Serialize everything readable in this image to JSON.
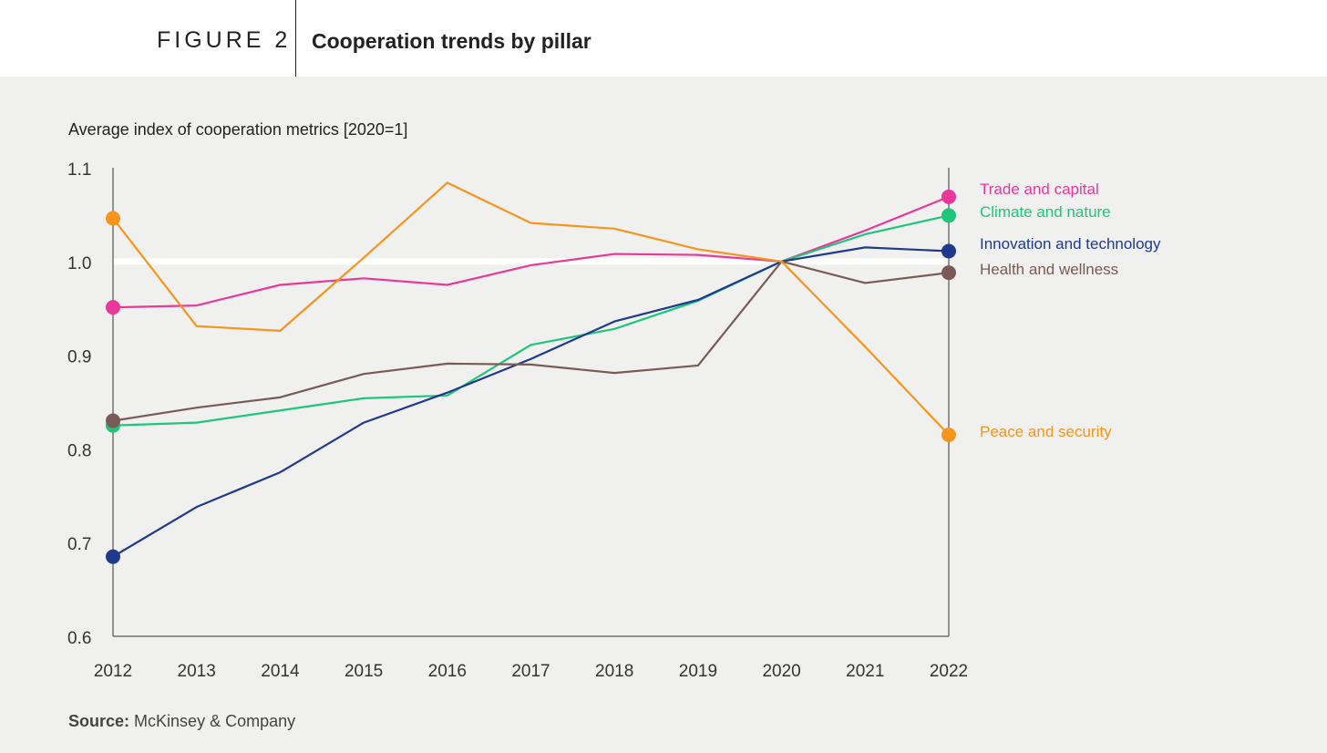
{
  "header": {
    "figure_label": "FIGURE 2",
    "title": "Cooperation trends by pillar"
  },
  "source": {
    "label": "Source:",
    "text": "McKinsey & Company"
  },
  "chart_data": {
    "type": "line",
    "title": "",
    "ylabel": "Average index of cooperation metrics [2020=1]",
    "xlabel": "",
    "x": [
      2012,
      2013,
      2014,
      2015,
      2016,
      2017,
      2018,
      2019,
      2020,
      2021,
      2022
    ],
    "xticks": [
      "2012",
      "2013",
      "2014",
      "2015",
      "2016",
      "2017",
      "2018",
      "2019",
      "2020",
      "2021",
      "2022"
    ],
    "yticks": [
      "0.6",
      "0.7",
      "0.8",
      "0.9",
      "1.0",
      "1.1"
    ],
    "ylim": [
      0.6,
      1.1
    ],
    "grid": false,
    "reference_line": 1.0,
    "legend": "right",
    "series": [
      {
        "name": "Trade and capital",
        "color": "#e8399a",
        "values": [
          0.951,
          0.953,
          0.975,
          0.982,
          0.975,
          0.996,
          1.008,
          1.007,
          1.0,
          1.033,
          1.069
        ]
      },
      {
        "name": "Climate and nature",
        "color": "#1ec67a",
        "values": [
          0.825,
          0.828,
          0.841,
          0.854,
          0.857,
          0.911,
          0.928,
          0.958,
          1.0,
          1.029,
          1.049
        ]
      },
      {
        "name": "Innovation and technology",
        "color": "#1f3a8a",
        "values": [
          0.685,
          0.738,
          0.775,
          0.828,
          0.86,
          0.896,
          0.936,
          0.959,
          1.0,
          1.015,
          1.011
        ]
      },
      {
        "name": "Health and wellness",
        "color": "#7a5a56",
        "values": [
          0.83,
          0.844,
          0.855,
          0.88,
          0.891,
          0.89,
          0.881,
          0.889,
          1.0,
          0.977,
          0.988
        ]
      },
      {
        "name": "Peace and security",
        "color": "#f5951e",
        "values": [
          1.046,
          0.931,
          0.926,
          1.004,
          1.084,
          1.041,
          1.035,
          1.013,
          1.0,
          0.909,
          0.815
        ]
      }
    ]
  }
}
